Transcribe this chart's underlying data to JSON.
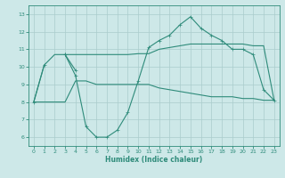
{
  "xlabel": "Humidex (Indice chaleur)",
  "x": [
    0,
    1,
    2,
    3,
    4,
    5,
    6,
    7,
    8,
    9,
    10,
    11,
    12,
    13,
    14,
    15,
    16,
    17,
    18,
    19,
    20,
    21,
    22,
    23
  ],
  "curve_main": [
    8.0,
    10.1,
    null,
    10.7,
    9.5,
    6.6,
    6.0,
    6.0,
    6.4,
    7.4,
    9.2,
    11.1,
    11.5,
    11.8,
    12.4,
    12.85,
    12.2,
    11.8,
    11.5,
    11.0,
    11.0,
    10.7,
    8.7,
    8.1
  ],
  "curve_extra_seg": [
    [
      3,
      4
    ],
    [
      10.7,
      9.8
    ]
  ],
  "curve_upper": [
    8.0,
    10.1,
    10.7,
    10.7,
    10.7,
    10.7,
    10.7,
    10.7,
    10.7,
    10.7,
    10.75,
    10.75,
    11.0,
    11.1,
    11.2,
    11.3,
    11.3,
    11.3,
    11.3,
    11.3,
    11.3,
    11.2,
    11.2,
    8.1
  ],
  "curve_lower": [
    8.0,
    8.0,
    8.0,
    8.0,
    9.2,
    9.2,
    9.0,
    9.0,
    9.0,
    9.0,
    9.0,
    9.0,
    8.8,
    8.7,
    8.6,
    8.5,
    8.4,
    8.3,
    8.3,
    8.3,
    8.2,
    8.2,
    8.1,
    8.1
  ],
  "line_color": "#2e8b7a",
  "bg_color": "#cde8e8",
  "grid_color": "#aacccc",
  "ylim": [
    5.5,
    13.5
  ],
  "xlim": [
    -0.5,
    23.5
  ],
  "yticks": [
    6,
    7,
    8,
    9,
    10,
    11,
    12,
    13
  ],
  "xticks": [
    0,
    1,
    2,
    3,
    4,
    5,
    6,
    7,
    8,
    9,
    10,
    11,
    12,
    13,
    14,
    15,
    16,
    17,
    18,
    19,
    20,
    21,
    22,
    23
  ]
}
